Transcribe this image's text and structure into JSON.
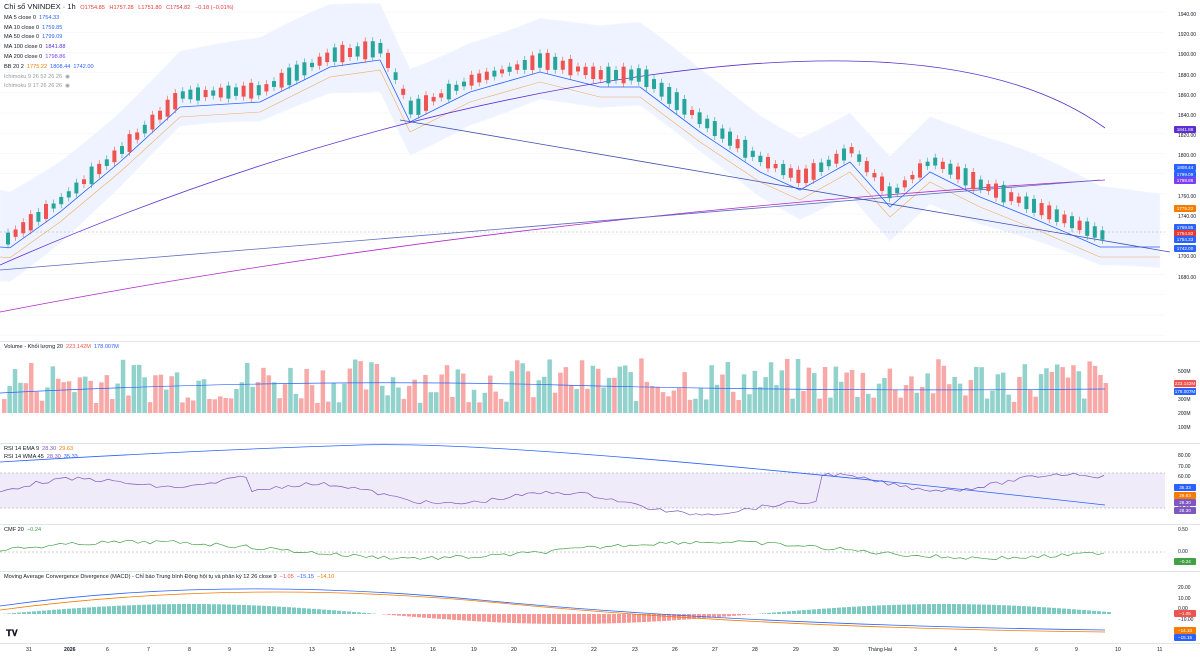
{
  "header": {
    "symbol": "Chỉ số VNINDEX · 1h",
    "ohlc": {
      "o": "O1754.85",
      "h": "H1757.28",
      "l": "L1751.80",
      "c": "C1754.82",
      "chg": "−0.18 (−0.01%)"
    }
  },
  "legends": [
    {
      "name": "MA 5 close 0",
      "values": [
        "1754.33"
      ],
      "color": "#2962ff"
    },
    {
      "name": "MA 10 close 0",
      "values": [
        "1759.85"
      ],
      "color": "#2962ff"
    },
    {
      "name": "MA 50 close 0",
      "values": [
        "1799.09"
      ],
      "color": "#2962ff"
    },
    {
      "name": "MA 100 close 0",
      "values": [
        "1841.88"
      ],
      "color": "#2962ff"
    },
    {
      "name": "MA 200 close 0",
      "values": [
        "1798.86"
      ],
      "color": "#2962ff"
    },
    {
      "name": "BB 20 2",
      "values": [
        "1775.22",
        "1808.44",
        "1742.00"
      ],
      "color": "#2962ff"
    },
    {
      "name": "Ichimoku 9 26 52 26 26",
      "values": [],
      "color": "#9598a1"
    },
    {
      "name": "Ichimoku 9 17 26 26 26",
      "values": [],
      "color": "#9598a1"
    }
  ],
  "price_axis": [
    "1940.00",
    "1920.00",
    "1900.00",
    "1880.00",
    "1860.00",
    "1840.00",
    "1820.00",
    "1800.00",
    "1780.00",
    "1760.00",
    "1740.00",
    "1720.00",
    "1700.00",
    "1680.00"
  ],
  "price_tags": [
    {
      "text": "1841.88",
      "color": "#5b2fd1"
    },
    {
      "text": "1808.44",
      "color": "#2962ff"
    },
    {
      "text": "1799.09",
      "color": "#2962ff"
    },
    {
      "text": "1798.86",
      "color": "#7b3ff2"
    },
    {
      "text": "1775.22",
      "color": "#f57c00"
    },
    {
      "text": "1759.85",
      "color": "#2962ff"
    },
    {
      "text": "1754.82",
      "color": "#e53935"
    },
    {
      "text": "1754.33",
      "color": "#2962ff"
    },
    {
      "text": "1742.00",
      "color": "#2962ff"
    }
  ],
  "volume": {
    "label": "Volume - Khối lượng 20",
    "v1": "223.142M",
    "v2": "178.007M",
    "axis": [
      "500M",
      "400M",
      "300M",
      "200M",
      "100M"
    ],
    "tags": [
      {
        "text": "223.142M",
        "color": "#ef5350"
      },
      {
        "text": "178.007M",
        "color": "#2962ff"
      }
    ]
  },
  "rsi": {
    "l1_name": "RSI 14 EMA 9",
    "l1_v": [
      "28.30",
      "29.63"
    ],
    "l2_name": "RSI 14 WMA 45",
    "l2_v": [
      "28.30",
      "35.33"
    ],
    "axis": [
      "80.00",
      "70.00",
      "60.00",
      "50.00",
      "40.00",
      "30.00"
    ],
    "tags": [
      {
        "text": "35.33",
        "color": "#2962ff"
      },
      {
        "text": "29.63",
        "color": "#f57c00"
      },
      {
        "text": "28.30",
        "color": "#7e57c2"
      },
      {
        "text": "28.30",
        "color": "#7e57c2"
      }
    ]
  },
  "cmf": {
    "label": "CMF 20",
    "value": "−0.24",
    "axis": [
      "0.50",
      "0.00"
    ],
    "tag": "−0.24"
  },
  "macd": {
    "label": "Moving Average Convergence Divergence (MACD) - Chỉ báo Trung bình Động hội tụ và phân kỳ 12 26 close 9",
    "v": [
      "−1.05",
      "−15.15",
      "−14.10"
    ],
    "axis": [
      "20.00",
      "10.00",
      "0.00",
      "−10.00",
      "−20.00"
    ],
    "tags": [
      {
        "text": "−1.05",
        "color": "#ef5350"
      },
      {
        "text": "−14.10",
        "color": "#f57c00"
      },
      {
        "text": "−15.15",
        "color": "#2962ff"
      }
    ]
  },
  "time_axis": [
    "31",
    "2026",
    "6",
    "7",
    "8",
    "9",
    "12",
    "13",
    "14",
    "15",
    "16",
    "19",
    "20",
    "21",
    "22",
    "23",
    "26",
    "27",
    "28",
    "29",
    "30",
    "Tháng Hai",
    "3",
    "4",
    "5",
    "6",
    "9",
    "10",
    "11"
  ]
}
